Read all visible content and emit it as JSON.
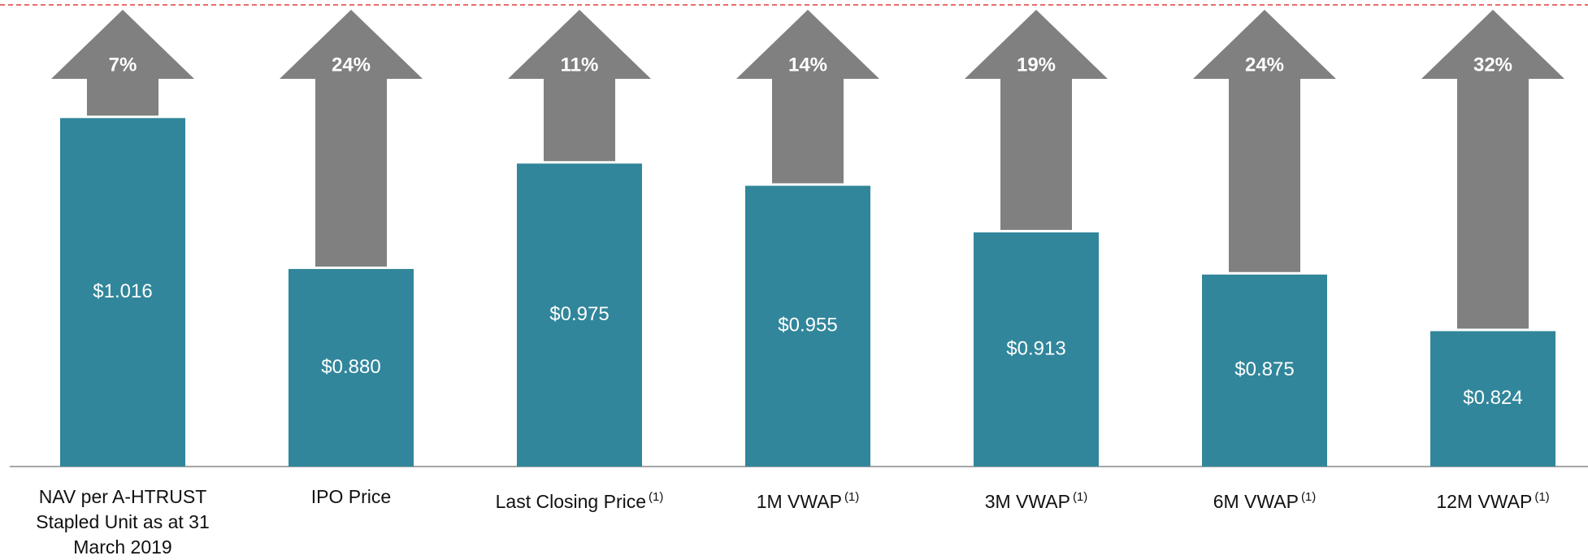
{
  "chart_data": {
    "type": "bar",
    "categories": [
      "NAV per A-HTRUST Stapled Unit as at 31 March 2019",
      "IPO Price",
      "Last Closing Price",
      "1M VWAP",
      "3M VWAP",
      "6M VWAP",
      "12M VWAP"
    ],
    "notes": [
      null,
      null,
      "(1)",
      "(1)",
      "(1)",
      "(1)",
      "(1)"
    ],
    "values": [
      1.016,
      0.88,
      0.975,
      0.955,
      0.913,
      0.875,
      0.824
    ],
    "value_labels": [
      "$1.016",
      "$0.880",
      "$0.975",
      "$0.955",
      "$0.913",
      "$0.875",
      "$0.824"
    ],
    "premiums": [
      7,
      24,
      11,
      14,
      19,
      24,
      32
    ],
    "premium_labels": [
      "7%",
      "24%",
      "11%",
      "14%",
      "19%",
      "24%",
      "32%"
    ],
    "color": "#31869b",
    "arrow_color": "#808080",
    "ylim": [
      0.702,
      1.118
    ]
  }
}
